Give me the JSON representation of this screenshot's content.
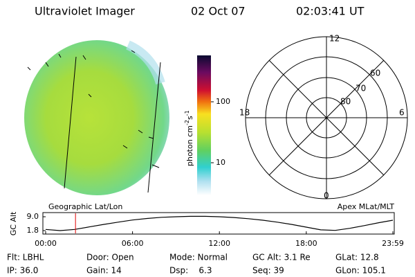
{
  "header": {
    "title": "Ultraviolet Imager",
    "date": "02 Oct 07",
    "time": "02:03:41 UT"
  },
  "colorbar": {
    "label": [
      "photon cm",
      "-2",
      "s",
      "-1"
    ],
    "ticks": [
      "100",
      "10"
    ]
  },
  "polar": {
    "mlt_labels": [
      "12",
      "18",
      "6",
      "0"
    ],
    "mlat_labels": [
      "60",
      "70",
      "80"
    ]
  },
  "panel_labels": [
    "Geographic Lat/Lon",
    "Apex MLat/MLT"
  ],
  "altitude_plot": {
    "ylabel": "GC Alt",
    "yticks": [
      {
        "value": 9.0,
        "label": "9.0"
      },
      {
        "value": 1.8,
        "label": "1.8"
      }
    ],
    "xticks": [
      {
        "value": 0,
        "label": "00:00"
      },
      {
        "value": 6,
        "label": "06:00"
      },
      {
        "value": 12,
        "label": "12:00"
      },
      {
        "value": 18,
        "label": "18:00"
      },
      {
        "value": 23.98,
        "label": "23:59"
      }
    ],
    "x": [
      0,
      1,
      2,
      3,
      4,
      5,
      6,
      7,
      8,
      9,
      10,
      11,
      12,
      13,
      14,
      15,
      16,
      17,
      18,
      19,
      20,
      21,
      22,
      23,
      23.98
    ],
    "values": [
      2.4,
      1.8,
      2.4,
      3.7,
      5.0,
      6.2,
      7.3,
      8.1,
      8.7,
      9.0,
      9.2,
      9.2,
      9.0,
      8.6,
      8.0,
      7.2,
      6.2,
      5.0,
      3.6,
      2.2,
      1.9,
      3.0,
      4.4,
      5.9,
      7.2
    ]
  },
  "info": [
    [
      "Flt: LBHL",
      "Door: Open",
      "Mode: Normal",
      "GC Alt: 3.1 Re",
      "GLat: 12.8"
    ],
    [
      "IP: 36.0",
      "Gain: 14",
      "Dsp:    6.3",
      "Seq: 39",
      "GLon: 105.1"
    ]
  ]
}
